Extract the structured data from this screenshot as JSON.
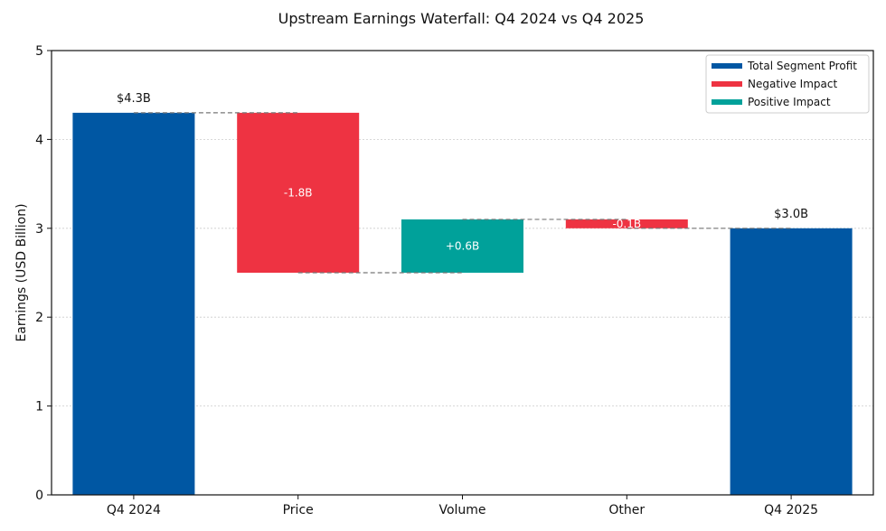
{
  "chart_data": {
    "type": "bar",
    "subtype": "waterfall",
    "title": "Upstream Earnings Waterfall: Q4 2024 vs Q4 2025",
    "xlabel": "",
    "ylabel": "Earnings (USD Billion)",
    "ylim": [
      0,
      5
    ],
    "yticks": [
      "0",
      "1",
      "2",
      "3",
      "4",
      "5"
    ],
    "grid": true,
    "legend_position": "top-right",
    "categories": [
      "Q4 2024",
      "Price",
      "Volume",
      "Other",
      "Q4 2025"
    ],
    "bars": [
      {
        "category": "Q4 2024",
        "kind": "total",
        "start": 0,
        "end": 4.3,
        "label": "$4.3B"
      },
      {
        "category": "Price",
        "kind": "negative",
        "start": 4.3,
        "end": 2.5,
        "label": "-1.8B"
      },
      {
        "category": "Volume",
        "kind": "positive",
        "start": 2.5,
        "end": 3.1,
        "label": "+0.6B"
      },
      {
        "category": "Other",
        "kind": "negative",
        "start": 3.1,
        "end": 3.0,
        "label": "-0.1B"
      },
      {
        "category": "Q4 2025",
        "kind": "total",
        "start": 0,
        "end": 3.0,
        "label": "$3.0B"
      }
    ],
    "legend": [
      {
        "label": "Total Segment Profit",
        "kind": "total"
      },
      {
        "label": "Negative Impact",
        "kind": "negative"
      },
      {
        "label": "Positive Impact",
        "kind": "positive"
      }
    ],
    "colors": {
      "total": "#0057a3",
      "negative": "#ee3342",
      "positive": "#00a19a",
      "connector": "#777777",
      "grid": "#cccccc"
    }
  }
}
